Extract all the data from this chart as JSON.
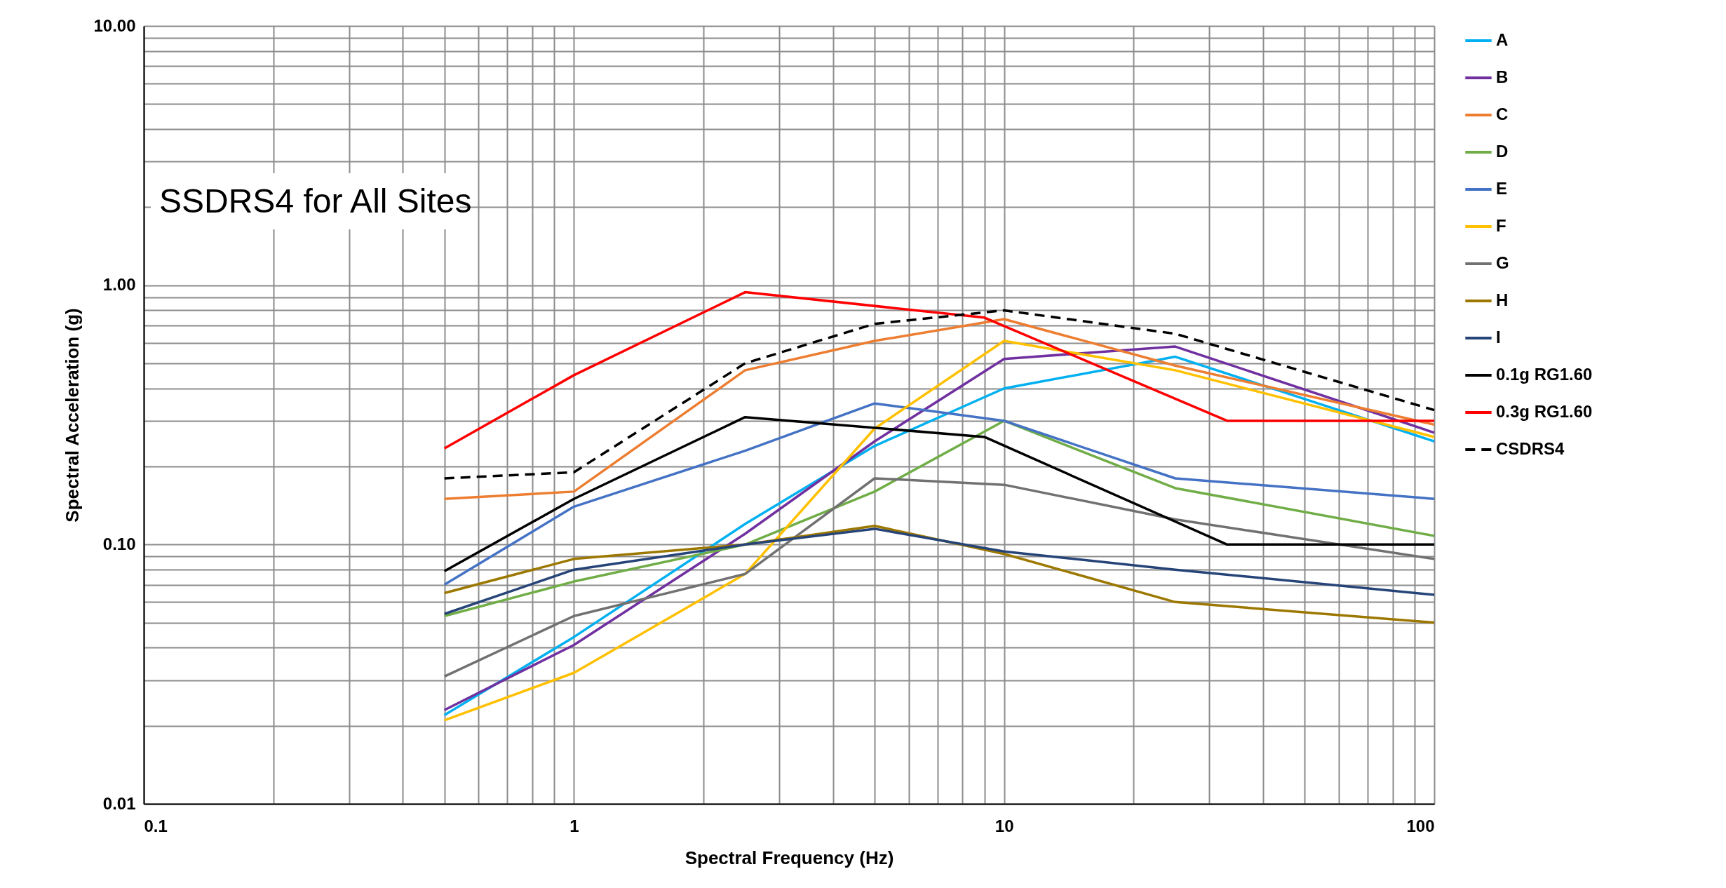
{
  "chart_data": {
    "type": "line",
    "title": "SSDRS4 for All Sites",
    "xlabel": "Spectral Frequency (Hz)",
    "ylabel": "Spectral Acceleration (g)",
    "log": "xy",
    "grid": true,
    "legend": "right",
    "marker": "none",
    "xlim": [
      0.1,
      100
    ],
    "ylim": [
      0.01,
      10
    ],
    "xticks": [
      0.1,
      {
        "value": 0.2,
        "label": null
      },
      {
        "value": 0.3,
        "label": null
      },
      {
        "value": 0.4,
        "label": null
      },
      {
        "value": 0.5,
        "label": null
      },
      {
        "value": 0.6,
        "label": null
      },
      {
        "value": 0.7,
        "label": null
      },
      {
        "value": 0.8,
        "label": null
      },
      {
        "value": 0.9,
        "label": null
      },
      1,
      {
        "value": 2,
        "label": null
      },
      {
        "value": 3,
        "label": null
      },
      {
        "value": 4,
        "label": null
      },
      {
        "value": 5,
        "label": null
      },
      {
        "value": 6,
        "label": null
      },
      {
        "value": 7,
        "label": null
      },
      {
        "value": 8,
        "label": null
      },
      {
        "value": 9,
        "label": null
      },
      10,
      {
        "value": 20,
        "label": null
      },
      {
        "value": 30,
        "label": null
      },
      {
        "value": 40,
        "label": null
      },
      {
        "value": 50,
        "label": null
      },
      {
        "value": 60,
        "label": null
      },
      {
        "value": 70,
        "label": null
      },
      {
        "value": 80,
        "label": null
      },
      {
        "value": 90,
        "label": null
      },
      100
    ],
    "yticks": [
      {
        "value": 0.01,
        "label": "0.01"
      },
      {
        "value": 0.02,
        "label": null
      },
      {
        "value": 0.03,
        "label": null
      },
      {
        "value": 0.04,
        "label": null
      },
      {
        "value": 0.05,
        "label": null
      },
      {
        "value": 0.06,
        "label": null
      },
      {
        "value": 0.07,
        "label": null
      },
      {
        "value": 0.08,
        "label": null
      },
      {
        "value": 0.09,
        "label": null
      },
      {
        "value": 0.1,
        "label": "0.10"
      },
      {
        "value": 0.2,
        "label": null
      },
      {
        "value": 0.3,
        "label": null
      },
      {
        "value": 0.4,
        "label": null
      },
      {
        "value": 0.5,
        "label": null
      },
      {
        "value": 0.6,
        "label": null
      },
      {
        "value": 0.7,
        "label": null
      },
      {
        "value": 0.8,
        "label": null
      },
      {
        "value": 0.9,
        "label": null
      },
      {
        "value": 1,
        "label": "1.00"
      },
      {
        "value": 2,
        "label": null
      },
      {
        "value": 3,
        "label": null
      },
      {
        "value": 4,
        "label": null
      },
      {
        "value": 5,
        "label": null
      },
      {
        "value": 6,
        "label": null
      },
      {
        "value": 7,
        "label": null
      },
      {
        "value": 8,
        "label": null
      },
      {
        "value": 9,
        "label": null
      },
      {
        "value": 10,
        "label": "10.00"
      }
    ],
    "x": [
      0.5,
      1,
      2.5,
      5,
      10,
      25,
      100
    ],
    "series": [
      {
        "name": "A",
        "color": "#00b0f0",
        "values": [
          0.022,
          0.044,
          0.12,
          0.24,
          0.4,
          0.53,
          0.25
        ]
      },
      {
        "name": "B",
        "color": "#7030a0",
        "values": [
          0.023,
          0.041,
          0.11,
          0.25,
          0.52,
          0.58,
          0.27
        ]
      },
      {
        "name": "C",
        "color": "#ed7d31",
        "values": [
          0.15,
          0.16,
          0.47,
          0.61,
          0.74,
          0.49,
          0.29
        ]
      },
      {
        "name": "D",
        "color": "#70ad47",
        "values": [
          0.053,
          0.072,
          0.1,
          0.16,
          0.3,
          0.165,
          0.108
        ]
      },
      {
        "name": "E",
        "color": "#4472c4",
        "values": [
          0.07,
          0.14,
          0.23,
          0.35,
          0.3,
          0.18,
          0.15
        ]
      },
      {
        "name": "F",
        "color": "#ffc000",
        "values": [
          0.021,
          0.032,
          0.077,
          0.28,
          0.61,
          0.47,
          0.26
        ]
      },
      {
        "name": "G",
        "color": "#717171",
        "values": [
          0.031,
          0.053,
          0.077,
          0.18,
          0.17,
          0.125,
          0.088
        ]
      },
      {
        "name": "H",
        "color": "#9c7800",
        "values": [
          0.065,
          0.088,
          0.1,
          0.118,
          0.092,
          0.06,
          0.05
        ]
      },
      {
        "name": "I",
        "color": "#264478",
        "values": [
          0.054,
          0.08,
          0.1,
          0.115,
          0.094,
          0.08,
          0.064
        ]
      },
      {
        "name": "0.1g RG1.60",
        "color": "#000000",
        "x": [
          0.5,
          1,
          2.5,
          9,
          33,
          100
        ],
        "values": [
          0.079,
          0.15,
          0.31,
          0.26,
          0.1,
          0.1
        ]
      },
      {
        "name": "0.3g RG1.60",
        "color": "#ff0000",
        "x": [
          0.5,
          1,
          2.5,
          9,
          33,
          100
        ],
        "values": [
          0.235,
          0.45,
          0.94,
          0.75,
          0.3,
          0.3
        ]
      },
      {
        "name": "CSDRS4",
        "color": "#000000",
        "line_style": "dashed",
        "values": [
          0.18,
          0.19,
          0.5,
          0.71,
          0.8,
          0.65,
          0.33
        ]
      }
    ]
  }
}
